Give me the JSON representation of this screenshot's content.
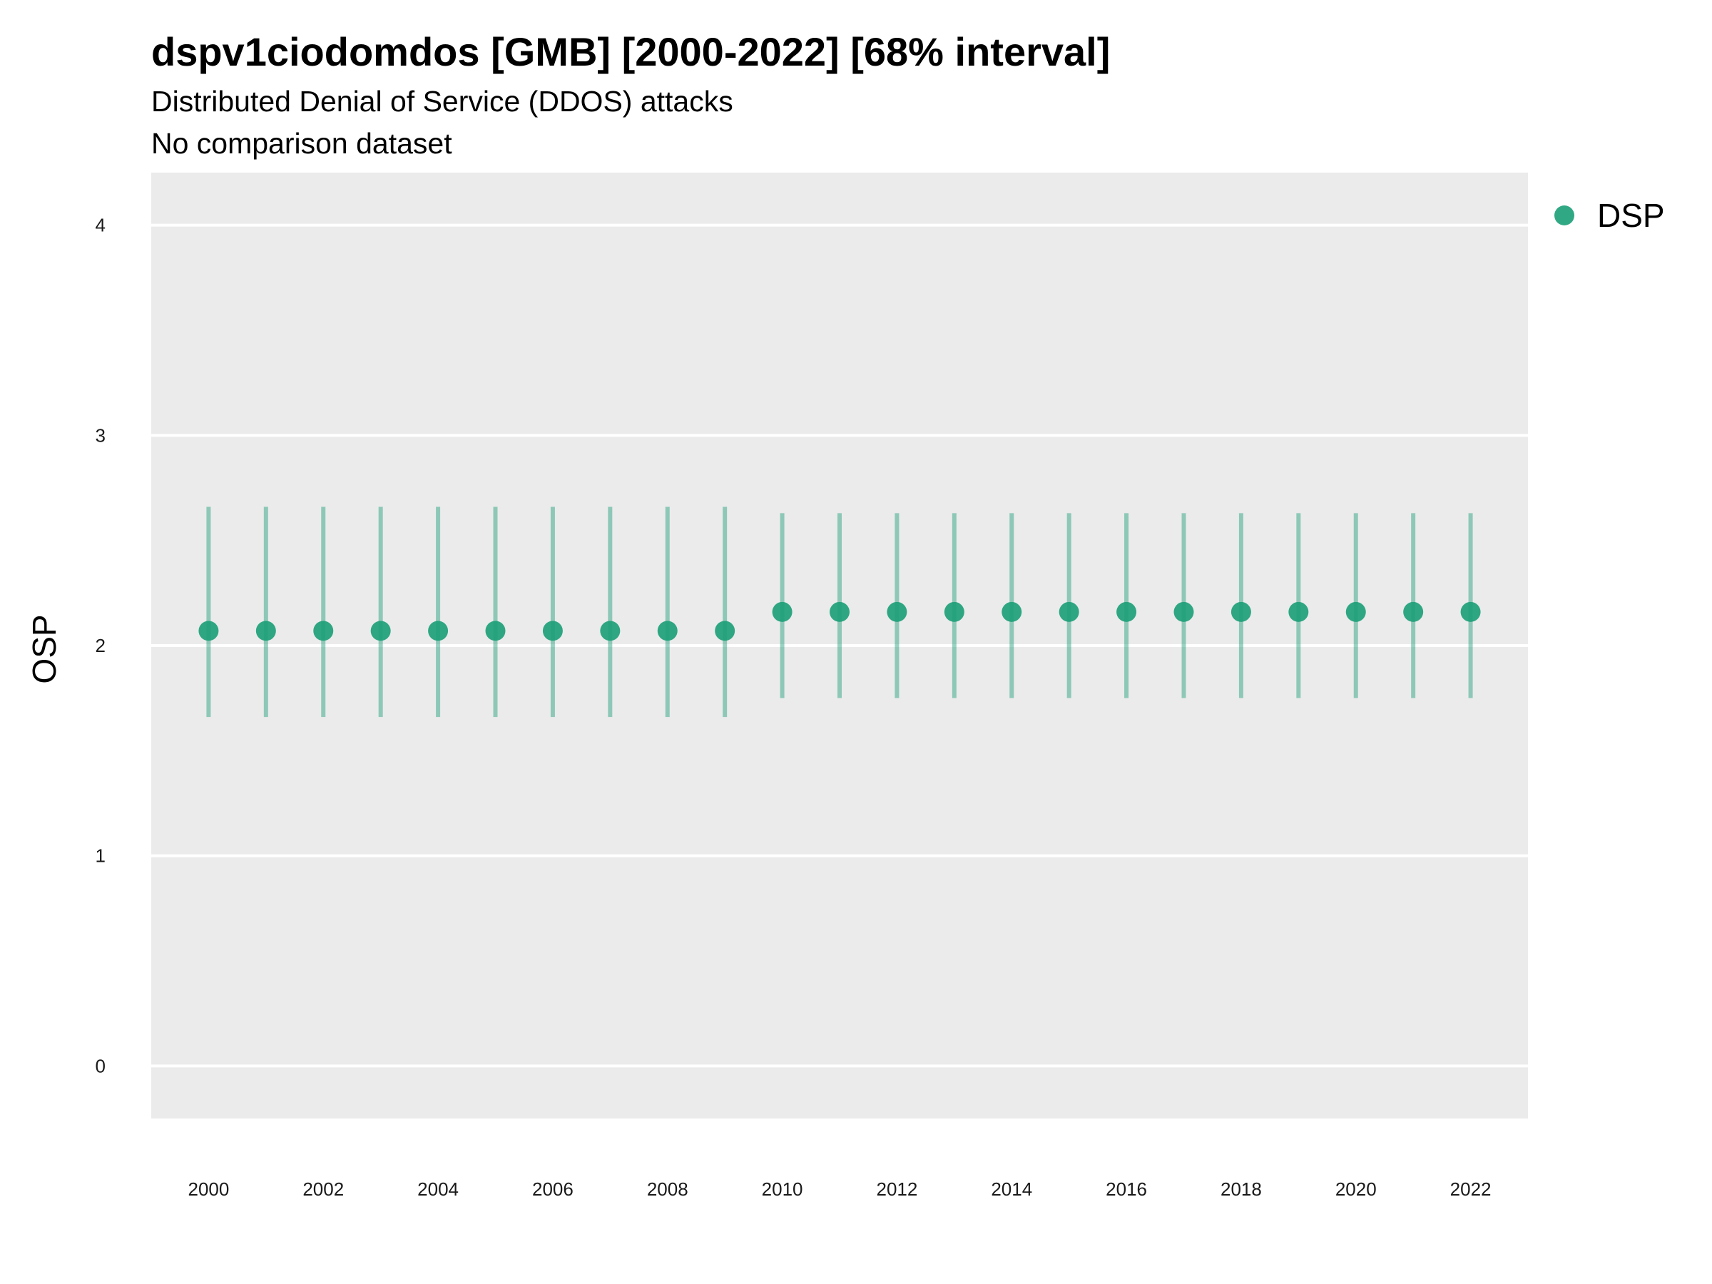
{
  "chart_data": {
    "type": "scatter",
    "title": "dspv1ciodomdos [GMB] [2000-2022] [68% interval]",
    "subtitle": "Distributed Denial of Service (DDOS) attacks",
    "caption_line": "No comparison dataset",
    "xlabel": "",
    "ylabel": "OSP",
    "xlim": [
      1999,
      2023
    ],
    "ylim": [
      -0.25,
      4.25
    ],
    "x_ticks": [
      2000,
      2002,
      2004,
      2006,
      2008,
      2010,
      2012,
      2014,
      2016,
      2018,
      2020,
      2022
    ],
    "y_ticks": [
      0,
      1,
      2,
      3,
      4
    ],
    "grid": true,
    "legend_position": "top-right",
    "series": [
      {
        "name": "DSP",
        "color": "#1b9e77",
        "x": [
          2000,
          2001,
          2002,
          2003,
          2004,
          2005,
          2006,
          2007,
          2008,
          2009,
          2010,
          2011,
          2012,
          2013,
          2014,
          2015,
          2016,
          2017,
          2018,
          2019,
          2020,
          2021,
          2022
        ],
        "y": [
          2.07,
          2.07,
          2.07,
          2.07,
          2.07,
          2.07,
          2.07,
          2.07,
          2.07,
          2.07,
          2.16,
          2.16,
          2.16,
          2.16,
          2.16,
          2.16,
          2.16,
          2.16,
          2.16,
          2.16,
          2.16,
          2.16,
          2.16
        ],
        "lower": [
          1.66,
          1.66,
          1.66,
          1.66,
          1.66,
          1.66,
          1.66,
          1.66,
          1.66,
          1.66,
          1.75,
          1.75,
          1.75,
          1.75,
          1.75,
          1.75,
          1.75,
          1.75,
          1.75,
          1.75,
          1.75,
          1.75,
          1.75
        ],
        "upper": [
          2.66,
          2.66,
          2.66,
          2.66,
          2.66,
          2.66,
          2.66,
          2.66,
          2.66,
          2.66,
          2.63,
          2.63,
          2.63,
          2.63,
          2.63,
          2.63,
          2.63,
          2.63,
          2.63,
          2.63,
          2.63,
          2.63,
          2.63
        ]
      }
    ]
  },
  "style": {
    "panel_bg": "#ebebeb",
    "grid_color": "#ffffff"
  }
}
